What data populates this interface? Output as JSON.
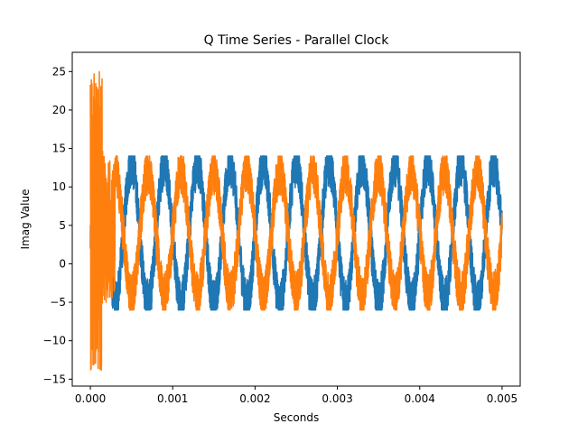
{
  "chart_data": {
    "type": "line",
    "title": "Q Time Series - Parallel Clock",
    "xlabel": "Seconds",
    "ylabel": "Imag Value",
    "xlim": [
      -0.00022,
      0.00522
    ],
    "ylim": [
      -15.9,
      27.5
    ],
    "xticks": [
      0.0,
      0.001,
      0.002,
      0.003,
      0.004,
      0.005
    ],
    "xtick_labels": [
      "0.000",
      "0.001",
      "0.002",
      "0.003",
      "0.004",
      "0.005"
    ],
    "yticks": [
      -15,
      -10,
      -5,
      0,
      5,
      10,
      15,
      20,
      25
    ],
    "ytick_labels": [
      "−15",
      "−10",
      "−5",
      "0",
      "5",
      "10",
      "15",
      "20",
      "25"
    ],
    "grid": false,
    "legend": "none",
    "series": [
      {
        "color": "#1f77b4",
        "description_values": {
          "x_start": 0.0,
          "x_end": 0.005,
          "initial_band": [
            2,
            5
          ],
          "initial_band_until": 0.0003,
          "oscillation_center": 4,
          "oscillation_amplitude": 9,
          "oscillation_period": 0.0004,
          "oscillation_phase": 0.0,
          "noise_band": 3,
          "min": -6,
          "max": 14
        }
      },
      {
        "color": "#ff7f0e",
        "description_values": {
          "x_start": 0.0,
          "x_end": 0.005,
          "spike_max": 25,
          "spike_min": -14,
          "spike_until": 0.00015,
          "oscillation_center": 4,
          "oscillation_amplitude": 8,
          "oscillation_period": 0.0004,
          "oscillation_phase": 0.5,
          "noise_band": 3,
          "min": -6,
          "max": 14
        }
      }
    ]
  }
}
